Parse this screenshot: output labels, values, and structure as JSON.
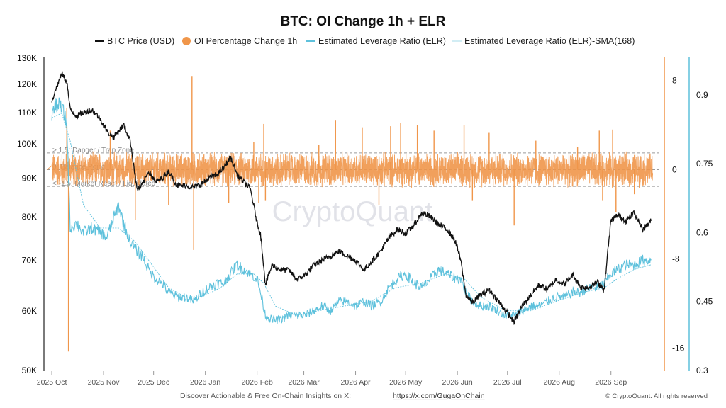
{
  "chart_data": {
    "type": "line",
    "title": "BTC: OI Change 1h + ELR",
    "legend_position": "top-center",
    "legend": [
      {
        "label": "BTC Price (USD)",
        "color": "#111111",
        "marker": "line"
      },
      {
        "label": "OI Percentage Change 1h",
        "color": "#f0964a",
        "marker": "dot"
      },
      {
        "label": "Estimated Leverage Ratio (ELR)",
        "color": "#5ec1dc",
        "marker": "line"
      },
      {
        "label": "Estimated Leverage Ratio (ELR)-SMA(168)",
        "color": "#a6dbe8",
        "marker": "thin-line"
      }
    ],
    "x_ticks": [
      "2025 Oct",
      "2025 Nov",
      "2025 Dec",
      "2026 Jan",
      "2026 Feb",
      "2026 Mar",
      "2026 Apr",
      "2026 May",
      "2026 Jun",
      "2026 Jul",
      "2026 Aug",
      "2026 Sep"
    ],
    "x_range": [
      "2025-09-28",
      "2026-09-30"
    ],
    "y_left": {
      "scale": "log",
      "range": [
        50000,
        130000
      ],
      "ticks": [
        "130K",
        "120K",
        "110K",
        "100K",
        "90K",
        "80K",
        "70K",
        "60K",
        "50K"
      ],
      "tick_values": [
        130000,
        120000,
        110000,
        100000,
        90000,
        80000,
        70000,
        60000,
        50000
      ]
    },
    "y_oi": {
      "range": [
        -18,
        10
      ],
      "ticks": [
        "8",
        "0",
        "-8",
        "-16"
      ],
      "tick_values": [
        8,
        0,
        -8,
        -16
      ]
    },
    "y_elr": {
      "range": [
        0.3,
        0.98
      ],
      "ticks": [
        "0.9",
        "0.75",
        "0.6",
        "0.45",
        "0.3"
      ],
      "tick_values": [
        0.9,
        0.75,
        0.6,
        0.45,
        0.3
      ]
    },
    "grid": false,
    "reference_lines": [
      {
        "value": 1.5,
        "label": "> 1.5: Danger / Trap Zone"
      },
      {
        "value": 0,
        "label": "0: Balance Point"
      },
      {
        "value": -1.5,
        "label": "< -1.5: Market Reset / Liquidated"
      }
    ],
    "series": [
      {
        "name": "BTC Price (USD)",
        "axis": "left",
        "dates": [
          "2025-10-01",
          "2025-10-04",
          "2025-10-07",
          "2025-10-10",
          "2025-10-12",
          "2025-10-16",
          "2025-10-20",
          "2025-10-25",
          "2025-10-30",
          "2025-11-03",
          "2025-11-07",
          "2025-11-10",
          "2025-11-13",
          "2025-11-17",
          "2025-11-21",
          "2025-11-24",
          "2025-11-28",
          "2025-12-02",
          "2025-12-06",
          "2025-12-10",
          "2025-12-15",
          "2025-12-20",
          "2025-12-25",
          "2025-12-30",
          "2026-01-03",
          "2026-01-08",
          "2026-01-12",
          "2026-01-16",
          "2026-01-20",
          "2026-01-24",
          "2026-01-28",
          "2026-02-01",
          "2026-02-03",
          "2026-02-06",
          "2026-02-10",
          "2026-02-15",
          "2026-02-20",
          "2026-02-25",
          "2026-03-02",
          "2026-03-07",
          "2026-03-12",
          "2026-03-17",
          "2026-03-22",
          "2026-03-27",
          "2026-04-01",
          "2026-04-06",
          "2026-04-11",
          "2026-04-16",
          "2026-04-21",
          "2026-04-26",
          "2026-05-01",
          "2026-05-06",
          "2026-05-11",
          "2026-05-16",
          "2026-05-21",
          "2026-05-26",
          "2026-05-31",
          "2026-06-03",
          "2026-06-06",
          "2026-06-10",
          "2026-06-15",
          "2026-06-20",
          "2026-06-25",
          "2026-06-30",
          "2026-07-05",
          "2026-07-10",
          "2026-07-15",
          "2026-07-20",
          "2026-07-25",
          "2026-07-30",
          "2026-08-04",
          "2026-08-09",
          "2026-08-14",
          "2026-08-19",
          "2026-08-24",
          "2026-08-28",
          "2026-09-01",
          "2026-09-05",
          "2026-09-10",
          "2026-09-15",
          "2026-09-20",
          "2026-09-25"
        ],
        "values": [
          114000,
          119000,
          124000,
          121000,
          111000,
          109000,
          110000,
          111000,
          108000,
          104000,
          102000,
          104000,
          106000,
          101000,
          87000,
          88000,
          92000,
          89000,
          90000,
          92000,
          88000,
          88000,
          87500,
          88500,
          90000,
          91000,
          93000,
          96000,
          91000,
          89000,
          87000,
          78500,
          76000,
          65000,
          69000,
          68000,
          68000,
          66000,
          67000,
          69000,
          70000,
          71000,
          72000,
          71000,
          70000,
          68000,
          70000,
          72000,
          75000,
          77000,
          76000,
          78000,
          81000,
          80000,
          78000,
          77000,
          74000,
          70000,
          63000,
          61500,
          63000,
          64000,
          62000,
          60000,
          58000,
          61000,
          63000,
          65000,
          64000,
          66000,
          65000,
          67000,
          64500,
          64500,
          65500,
          64000,
          79000,
          80500,
          79000,
          81000,
          77000,
          79000
        ]
      },
      {
        "name": "OI Percentage Change 1h",
        "axis": "oi",
        "baseline_range": [
          -0.8,
          0.8
        ],
        "spikes": [
          [
            "2025-10-11",
            -16.3
          ],
          [
            "2025-10-10",
            5.5
          ],
          [
            "2025-11-05",
            3.5
          ],
          [
            "2025-11-20",
            -4.5
          ],
          [
            "2025-12-10",
            -3.2
          ],
          [
            "2025-12-24",
            8.4
          ],
          [
            "2025-12-25",
            -7.2
          ],
          [
            "2026-01-15",
            -3.0
          ],
          [
            "2026-01-30",
            2.5
          ],
          [
            "2026-02-02",
            -3.0
          ],
          [
            "2026-02-05",
            4.1
          ],
          [
            "2026-02-06",
            -2.8
          ],
          [
            "2026-03-10",
            2.2
          ],
          [
            "2026-03-20",
            4.4
          ],
          [
            "2026-04-05",
            3.8
          ],
          [
            "2026-04-15",
            -3.2
          ],
          [
            "2026-04-22",
            3.9
          ],
          [
            "2026-04-28",
            4.2
          ],
          [
            "2026-05-08",
            4.0
          ],
          [
            "2026-05-18",
            3.5
          ],
          [
            "2026-06-05",
            4.0
          ],
          [
            "2026-06-10",
            -2.8
          ],
          [
            "2026-06-20",
            3.3
          ],
          [
            "2026-07-05",
            -5.0
          ],
          [
            "2026-07-18",
            2.6
          ],
          [
            "2026-08-12",
            2.0
          ],
          [
            "2026-08-25",
            3.5
          ],
          [
            "2026-08-27",
            -2.8
          ],
          [
            "2026-09-02",
            3.6
          ],
          [
            "2026-09-04",
            -3.8
          ],
          [
            "2026-09-15",
            -2.2
          ]
        ]
      },
      {
        "name": "Estimated Leverage Ratio (ELR)",
        "axis": "elr",
        "dates": [
          "2025-10-01",
          "2025-10-04",
          "2025-10-07",
          "2025-10-10",
          "2025-10-12",
          "2025-10-16",
          "2025-10-20",
          "2025-10-25",
          "2025-10-30",
          "2025-11-03",
          "2025-11-07",
          "2025-11-10",
          "2025-11-13",
          "2025-11-17",
          "2025-11-21",
          "2025-11-24",
          "2025-11-28",
          "2025-12-02",
          "2025-12-06",
          "2025-12-10",
          "2025-12-15",
          "2025-12-20",
          "2025-12-25",
          "2025-12-30",
          "2026-01-03",
          "2026-01-08",
          "2026-01-12",
          "2026-01-16",
          "2026-01-20",
          "2026-01-24",
          "2026-01-28",
          "2026-02-01",
          "2026-02-03",
          "2026-02-06",
          "2026-02-10",
          "2026-02-15",
          "2026-02-20",
          "2026-02-25",
          "2026-03-02",
          "2026-03-07",
          "2026-03-12",
          "2026-03-17",
          "2026-03-22",
          "2026-03-27",
          "2026-04-01",
          "2026-04-06",
          "2026-04-11",
          "2026-04-16",
          "2026-04-21",
          "2026-04-26",
          "2026-05-01",
          "2026-05-06",
          "2026-05-11",
          "2026-05-16",
          "2026-05-21",
          "2026-05-26",
          "2026-05-31",
          "2026-06-03",
          "2026-06-06",
          "2026-06-10",
          "2026-06-15",
          "2026-06-20",
          "2026-06-25",
          "2026-06-30",
          "2026-07-05",
          "2026-07-10",
          "2026-07-15",
          "2026-07-20",
          "2026-07-25",
          "2026-07-30",
          "2026-08-04",
          "2026-08-09",
          "2026-08-14",
          "2026-08-19",
          "2026-08-24",
          "2026-08-28",
          "2026-09-01",
          "2026-09-05",
          "2026-09-10",
          "2026-09-15",
          "2026-09-20",
          "2026-09-25"
        ],
        "values": [
          0.86,
          0.88,
          0.87,
          0.84,
          0.61,
          0.62,
          0.6,
          0.61,
          0.6,
          0.59,
          0.63,
          0.66,
          0.62,
          0.58,
          0.56,
          0.55,
          0.52,
          0.5,
          0.49,
          0.47,
          0.46,
          0.46,
          0.45,
          0.47,
          0.48,
          0.49,
          0.49,
          0.51,
          0.53,
          0.52,
          0.51,
          0.5,
          0.47,
          0.42,
          0.41,
          0.41,
          0.42,
          0.42,
          0.42,
          0.43,
          0.44,
          0.43,
          0.45,
          0.45,
          0.44,
          0.45,
          0.44,
          0.45,
          0.48,
          0.5,
          0.51,
          0.49,
          0.48,
          0.5,
          0.52,
          0.51,
          0.5,
          0.5,
          0.47,
          0.45,
          0.44,
          0.44,
          0.43,
          0.42,
          0.42,
          0.43,
          0.44,
          0.44,
          0.45,
          0.46,
          0.46,
          0.47,
          0.47,
          0.48,
          0.48,
          0.49,
          0.51,
          0.52,
          0.53,
          0.53,
          0.54,
          0.54
        ]
      },
      {
        "name": "Estimated Leverage Ratio (ELR)-SMA(168)",
        "axis": "elr",
        "dates": [
          "2025-10-01",
          "2025-10-07",
          "2025-10-12",
          "2025-10-20",
          "2025-10-30",
          "2025-11-10",
          "2025-11-20",
          "2025-11-30",
          "2025-12-10",
          "2025-12-20",
          "2025-12-30",
          "2026-01-10",
          "2026-01-20",
          "2026-01-30",
          "2026-02-05",
          "2026-02-12",
          "2026-02-25",
          "2026-03-10",
          "2026-03-25",
          "2026-04-10",
          "2026-04-25",
          "2026-05-10",
          "2026-05-25",
          "2026-06-05",
          "2026-06-15",
          "2026-06-30",
          "2026-07-15",
          "2026-07-30",
          "2026-08-15",
          "2026-08-28",
          "2026-09-05",
          "2026-09-15",
          "2026-09-25"
        ],
        "values": [
          0.85,
          0.86,
          0.8,
          0.66,
          0.61,
          0.61,
          0.58,
          0.53,
          0.48,
          0.46,
          0.46,
          0.48,
          0.51,
          0.51,
          0.49,
          0.44,
          0.42,
          0.43,
          0.44,
          0.45,
          0.48,
          0.49,
          0.51,
          0.5,
          0.46,
          0.43,
          0.43,
          0.45,
          0.47,
          0.48,
          0.5,
          0.52,
          0.53
        ]
      }
    ]
  },
  "watermark": "CryptoQuant",
  "footer": {
    "text": "Discover Actionable & Free On-Chain Insights on X: ",
    "link": "https://x.com/GugaOnChain",
    "copyright": "© CryptoQuant. All rights reserved"
  }
}
